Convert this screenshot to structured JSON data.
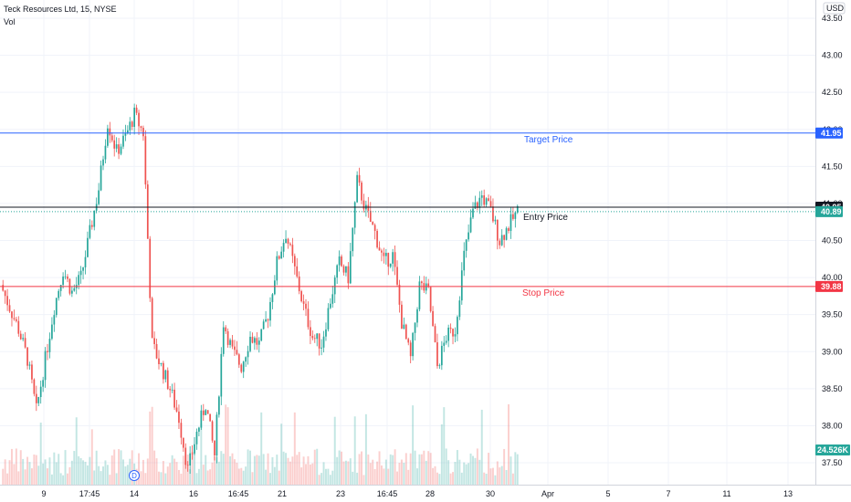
{
  "header": {
    "symbol": "Teck Resources Ltd, 15, NYSE",
    "volume_label": "Vol",
    "currency": "USD"
  },
  "colors": {
    "up": "#26a69a",
    "down": "#ef5350",
    "target": "#2962ff",
    "stop": "#f23645",
    "entry": "#131722",
    "last": "#26a69a"
  },
  "chart_data": {
    "type": "candlestick",
    "title": "Teck Resources Ltd, 15, NYSE",
    "ylim": [
      37.3,
      43.6
    ],
    "y_ticks": [
      37.5,
      38.0,
      38.5,
      39.0,
      39.5,
      40.0,
      40.5,
      41.0,
      41.5,
      42.0,
      42.5,
      43.0,
      43.5
    ],
    "x_ticks": [
      "9",
      "17:45",
      "14",
      "16",
      "16:45",
      "21",
      "23",
      "16:45",
      "28",
      "30",
      "Apr",
      "5",
      "7",
      "11",
      "13"
    ],
    "grid": true,
    "legend": "none",
    "close_series": [
      39.9,
      39.6,
      39.3,
      38.9,
      38.2,
      38.9,
      39.6,
      40.1,
      39.8,
      40.0,
      40.6,
      41.2,
      42.1,
      41.7,
      41.9,
      42.2,
      41.95,
      39.1,
      38.8,
      38.5,
      38.1,
      37.4,
      37.9,
      38.3,
      37.6,
      39.4,
      39.0,
      38.8,
      39.2,
      39.1,
      39.5,
      40.2,
      40.6,
      40.1,
      39.6,
      39.2,
      39.1,
      39.7,
      40.2,
      40.0,
      41.3,
      40.9,
      40.6,
      40.2,
      40.3,
      39.4,
      38.9,
      39.9,
      39.8,
      38.8,
      39.2,
      39.3,
      40.3,
      40.9,
      41.1,
      40.9,
      40.5,
      40.7,
      40.89
    ],
    "hlines": [
      {
        "label": "Target Price",
        "value": 41.95,
        "tag": "41.95"
      },
      {
        "label": "Entry Price",
        "value": 40.95,
        "tag": "40.95"
      },
      {
        "label": "Stop Price",
        "value": 39.88,
        "tag": "39.88"
      }
    ],
    "last_price": {
      "value": 40.89,
      "tag": "40.89"
    },
    "volume": {
      "label": "Vol",
      "last": "24.526K"
    },
    "event_marker": "D"
  }
}
